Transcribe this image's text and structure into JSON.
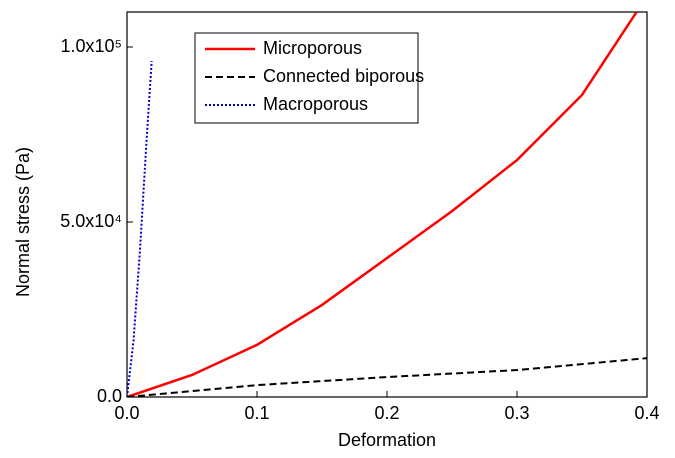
{
  "chart_data": {
    "type": "line",
    "x_label": "Deformation",
    "y_label": "Normal stress (Pa)",
    "xlim": [
      0,
      0.4
    ],
    "ylim": [
      0,
      110000
    ],
    "xticks": [
      {
        "value": 0,
        "label": "0.0"
      },
      0.1,
      0.2,
      0.3,
      0.4
    ],
    "yticks": [
      {
        "value": 0,
        "label": "0.0"
      },
      {
        "value": 50000,
        "label": "5.0x10⁴"
      },
      {
        "value": 100000,
        "label": "1.0x10⁵"
      }
    ],
    "legend": "upper left",
    "series": [
      {
        "name": "Microporous",
        "color": "#ff0000",
        "style": "solid",
        "x": [
          0,
          0.05,
          0.1,
          0.15,
          0.2,
          0.25,
          0.3,
          0.35,
          0.392
        ],
        "values": [
          0,
          6300,
          14900,
          26300,
          39700,
          53100,
          67700,
          86300,
          110000
        ]
      },
      {
        "name": "Connected biporous",
        "color": "#000000",
        "style": "dashed",
        "x": [
          0,
          0.05,
          0.1,
          0.2,
          0.3,
          0.4
        ],
        "values": [
          0,
          1700,
          3400,
          5700,
          7700,
          11100
        ]
      },
      {
        "name": "Macroporous",
        "color": "#0000cc",
        "style": "dotted",
        "x": [
          0,
          0.005,
          0.01,
          0.015,
          0.019
        ],
        "values": [
          0,
          16000,
          42000,
          73000,
          96000
        ]
      }
    ]
  }
}
